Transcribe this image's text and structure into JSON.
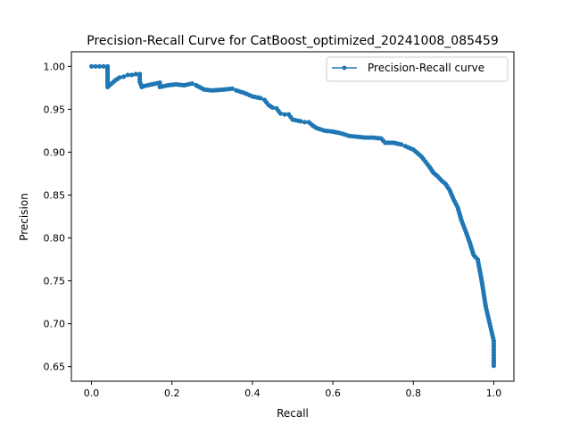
{
  "chart_data": {
    "type": "line",
    "title": "Precision-Recall Curve for CatBoost_optimized_20241008_085459",
    "xlabel": "Recall",
    "ylabel": "Precision",
    "xlim": [
      -0.05,
      1.05
    ],
    "ylim": [
      0.633,
      1.017
    ],
    "xticks": [
      0.0,
      0.2,
      0.4,
      0.6,
      0.8,
      1.0
    ],
    "xtick_labels": [
      "0.0",
      "0.2",
      "0.4",
      "0.6",
      "0.8",
      "1.0"
    ],
    "yticks": [
      0.65,
      0.7,
      0.75,
      0.8,
      0.85,
      0.9,
      0.95,
      1.0
    ],
    "ytick_labels": [
      "0.65",
      "0.70",
      "0.75",
      "0.80",
      "0.85",
      "0.90",
      "0.95",
      "1.00"
    ],
    "grid": false,
    "legend_position": "top-right",
    "series": [
      {
        "name": "Precision-Recall curve",
        "color": "#1f77b4",
        "marker": "dot",
        "x": [
          0.0,
          0.01,
          0.02,
          0.03,
          0.04,
          0.04,
          0.05,
          0.06,
          0.07,
          0.08,
          0.09,
          0.1,
          0.11,
          0.12,
          0.12,
          0.125,
          0.13,
          0.15,
          0.17,
          0.17,
          0.19,
          0.21,
          0.23,
          0.25,
          0.26,
          0.28,
          0.3,
          0.33,
          0.35,
          0.36,
          0.38,
          0.4,
          0.42,
          0.43,
          0.44,
          0.45,
          0.46,
          0.47,
          0.48,
          0.49,
          0.5,
          0.52,
          0.53,
          0.54,
          0.55,
          0.56,
          0.58,
          0.6,
          0.62,
          0.64,
          0.66,
          0.68,
          0.7,
          0.72,
          0.73,
          0.75,
          0.77,
          0.78,
          0.8,
          0.81,
          0.82,
          0.83,
          0.84,
          0.85,
          0.86,
          0.87,
          0.88,
          0.89,
          0.9,
          0.91,
          0.92,
          0.93,
          0.94,
          0.95,
          0.96,
          0.97,
          0.98,
          0.985,
          0.99,
          0.995,
          1.0,
          1.0,
          1.0,
          1.0
        ],
        "y": [
          1.0,
          1.0,
          1.0,
          1.0,
          1.0,
          0.976,
          0.98,
          0.984,
          0.987,
          0.988,
          0.99,
          0.99,
          0.991,
          0.991,
          0.982,
          0.976,
          0.977,
          0.979,
          0.981,
          0.976,
          0.978,
          0.979,
          0.978,
          0.98,
          0.978,
          0.973,
          0.972,
          0.973,
          0.974,
          0.972,
          0.969,
          0.965,
          0.963,
          0.961,
          0.955,
          0.952,
          0.951,
          0.945,
          0.944,
          0.944,
          0.938,
          0.936,
          0.935,
          0.935,
          0.931,
          0.928,
          0.925,
          0.924,
          0.922,
          0.919,
          0.918,
          0.917,
          0.917,
          0.916,
          0.911,
          0.911,
          0.909,
          0.907,
          0.903,
          0.899,
          0.895,
          0.889,
          0.883,
          0.876,
          0.872,
          0.867,
          0.863,
          0.856,
          0.845,
          0.836,
          0.82,
          0.808,
          0.795,
          0.78,
          0.775,
          0.75,
          0.72,
          0.71,
          0.7,
          0.69,
          0.68,
          0.67,
          0.66,
          0.651
        ]
      }
    ]
  }
}
